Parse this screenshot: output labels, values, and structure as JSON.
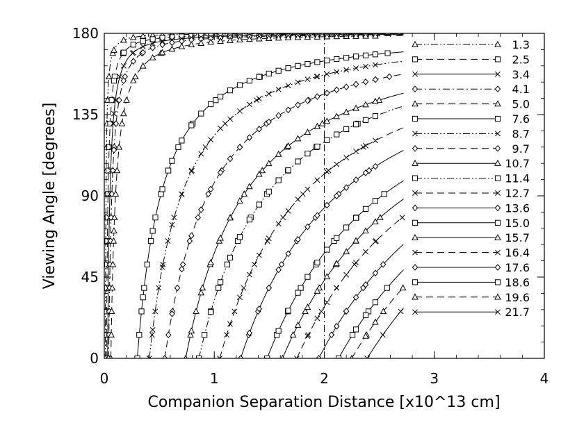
{
  "chart_data": {
    "type": "line",
    "title": "",
    "xlabel": "Companion Separation Distance [x10^13 cm]",
    "ylabel": "Viewing Angle [degrees]",
    "xlim": [
      0,
      4
    ],
    "ylim": [
      0,
      180
    ],
    "xticks": [
      "0",
      "1",
      "2",
      "3",
      "4"
    ],
    "yticks": [
      "0",
      "45",
      "90",
      "135",
      "180"
    ],
    "grid": false,
    "legend_position": "right",
    "reference_line": {
      "x": 2.0,
      "style": "dash-dot"
    },
    "colors": {
      "line": "#000000",
      "background": "#ffffff"
    },
    "series": [
      {
        "name": "1.3",
        "marker": "triangle",
        "dash": "dash-dot-dot",
        "x0": 0.009
      },
      {
        "name": "2.5",
        "marker": "square",
        "dash": "dashed",
        "x0": 0.02
      },
      {
        "name": "3.4",
        "marker": "x",
        "dash": "solid",
        "x0": 0.03
      },
      {
        "name": "4.1",
        "marker": "diamond",
        "dash": "dash-dot",
        "x0": 0.04
      },
      {
        "name": "5.0",
        "marker": "triangle",
        "dash": "dashed",
        "x0": 0.06
      },
      {
        "name": "7.6",
        "marker": "square",
        "dash": "solid",
        "x0": 0.3
      },
      {
        "name": "8.7",
        "marker": "x",
        "dash": "dash-dot-dot",
        "x0": 0.41
      },
      {
        "name": "9.7",
        "marker": "diamond",
        "dash": "dashed",
        "x0": 0.55
      },
      {
        "name": "10.7",
        "marker": "triangle",
        "dash": "solid",
        "x0": 0.74
      },
      {
        "name": "11.4",
        "marker": "square",
        "dash": "dash-dot-dot",
        "x0": 0.86
      },
      {
        "name": "12.7",
        "marker": "x",
        "dash": "dashed",
        "x0": 1.05
      },
      {
        "name": "13.6",
        "marker": "diamond",
        "dash": "solid",
        "x0": 1.24
      },
      {
        "name": "15.0",
        "marker": "square",
        "dash": "solid",
        "x0": 1.48
      },
      {
        "name": "15.7",
        "marker": "triangle",
        "dash": "solid",
        "x0": 1.62
      },
      {
        "name": "16.4",
        "marker": "x",
        "dash": "dashed",
        "x0": 1.75
      },
      {
        "name": "17.6",
        "marker": "diamond",
        "dash": "solid",
        "x0": 1.95
      },
      {
        "name": "18.6",
        "marker": "square",
        "dash": "solid",
        "x0": 2.13
      },
      {
        "name": "19.6",
        "marker": "triangle",
        "dash": "dashed",
        "x0": 2.25
      },
      {
        "name": "21.7",
        "marker": "x",
        "dash": "solid",
        "x0": 2.39
      }
    ]
  }
}
